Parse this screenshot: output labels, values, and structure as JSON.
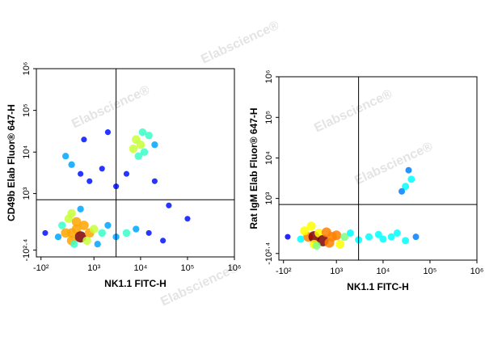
{
  "watermark": "Elabscience®",
  "chart_data": [
    {
      "type": "scatter",
      "scale": "biexponential",
      "xlabel": "NK1.1 FITC-H",
      "ylabel": "CD49b Elab Fluor® 647-H",
      "xlim": [
        -160,
        1000000
      ],
      "ylim": [
        -400,
        1000000
      ],
      "xticks": [
        {
          "value": -100,
          "label": "-10²"
        },
        {
          "value": 1000,
          "label": "10³"
        },
        {
          "value": 10000,
          "label": "10⁴"
        },
        {
          "value": 100000,
          "label": "10⁵"
        },
        {
          "value": 1000000,
          "label": "10⁶"
        }
      ],
      "yticks": [
        {
          "value": -251,
          "label": "-10²·⁴"
        },
        {
          "value": 1000,
          "label": "10³"
        },
        {
          "value": 10000,
          "label": "10⁴"
        },
        {
          "value": 100000,
          "label": "10⁵"
        },
        {
          "value": 1000000,
          "label": "10⁶"
        }
      ],
      "gate": {
        "x": 3000,
        "y": 700
      },
      "x": [
        200,
        300,
        400,
        300,
        500,
        150,
        600,
        800,
        250,
        350,
        700,
        100,
        400,
        1000,
        1500,
        2000,
        3000,
        5000,
        8000,
        15000,
        30000,
        -50,
        300,
        500,
        1200,
        10000,
        8000,
        12000,
        15000,
        7000,
        20000,
        9000,
        11000,
        500,
        300,
        800,
        1500,
        200,
        600,
        3000,
        5000,
        20000,
        40000,
        100000,
        2000
      ],
      "y": [
        0,
        0,
        50,
        -100,
        -50,
        100,
        100,
        0,
        200,
        -150,
        -100,
        -50,
        150,
        50,
        0,
        100,
        -50,
        0,
        50,
        0,
        -100,
        0,
        300,
        400,
        -150,
        15000,
        20000,
        10000,
        25000,
        12000,
        15000,
        8000,
        30000,
        3000,
        5000,
        2000,
        4000,
        8000,
        20000,
        1500,
        3000,
        2000,
        500,
        200,
        30000
      ]
    },
    {
      "type": "scatter",
      "scale": "biexponential",
      "xlabel": "NK1.1 FITC-H",
      "ylabel": "Rat IgM Elab Fluor® 647-H",
      "xlim": [
        -160,
        1000000
      ],
      "ylim": [
        -400,
        1000000
      ],
      "xticks": [
        {
          "value": -100,
          "label": "-10²"
        },
        {
          "value": 1000,
          "label": "10³"
        },
        {
          "value": 10000,
          "label": "10⁴"
        },
        {
          "value": 100000,
          "label": "10⁵"
        },
        {
          "value": 1000000,
          "label": "10⁶"
        }
      ],
      "yticks": [
        {
          "value": -251,
          "label": "-10²·⁴"
        },
        {
          "value": 1000,
          "label": "10³"
        },
        {
          "value": 10000,
          "label": "10⁴"
        },
        {
          "value": 100000,
          "label": "10⁵"
        },
        {
          "value": 1000000,
          "label": "10⁶"
        }
      ],
      "gate": {
        "x": 3000,
        "y": 700
      },
      "x": [
        200,
        300,
        400,
        300,
        500,
        150,
        600,
        800,
        250,
        350,
        700,
        100,
        1000,
        1500,
        2000,
        3000,
        5000,
        8000,
        15000,
        30000,
        50000,
        -50,
        1200,
        20000,
        10000,
        30000,
        40000,
        25000,
        35000
      ],
      "y": [
        0,
        0,
        50,
        -100,
        -50,
        80,
        60,
        0,
        150,
        -120,
        -80,
        -30,
        20,
        0,
        50,
        -40,
        0,
        30,
        0,
        -50,
        0,
        0,
        -100,
        50,
        -30,
        2000,
        3000,
        1500,
        5000
      ]
    }
  ]
}
